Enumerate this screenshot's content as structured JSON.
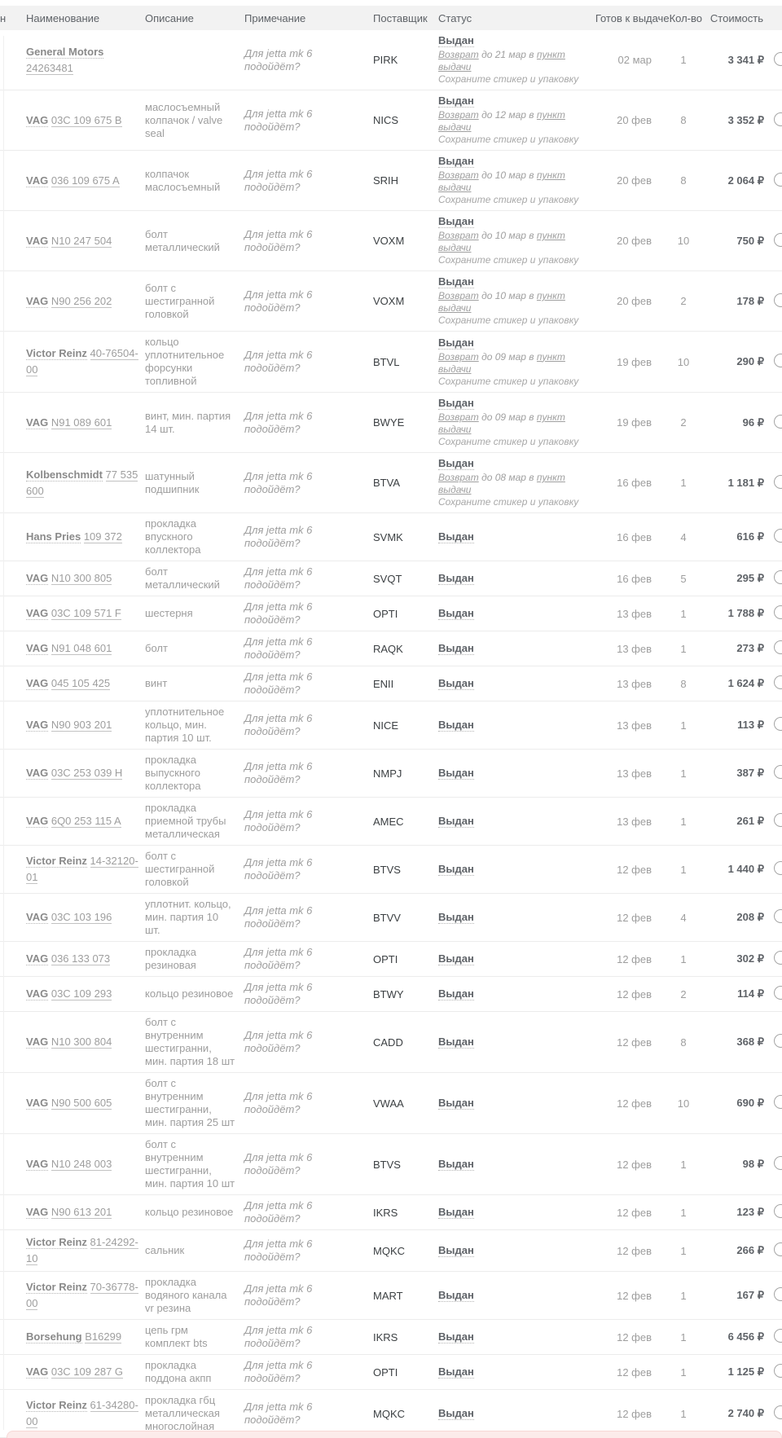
{
  "colors": {
    "header_bg": "#f2f2f2",
    "row_separator": "#ececec",
    "text_dark": "#5f6368",
    "text_gray": "#9e9e9e",
    "pink_bar_bg": "#fcebea"
  },
  "header": {
    "stub": "н",
    "name": "Наименование",
    "description": "Описание",
    "note": "Примечание",
    "supplier": "Поставщик",
    "status": "Статус",
    "ready": "Готов к выдаче",
    "qty": "Кол-во",
    "price": "Стоимость"
  },
  "labels": {
    "issued": "Выдан",
    "return_prefix": "Возврат",
    "return_link": "пункт выдачи",
    "keep_note": "Сохраните стикер и упаковку"
  },
  "icons": {
    "chat_bubble": "chat-bubble-icon"
  },
  "rows": [
    {
      "brand": "General Motors",
      "number": "24263481",
      "description": "",
      "note": "Для jetta mk 6 подойдёт?",
      "supplier": "PIRK",
      "return_mid": "до 21 мар в",
      "ready": "02 мар",
      "qty": "1",
      "price": "3 341 ₽"
    },
    {
      "brand": "VAG",
      "number": "03C 109 675 B",
      "description": "маслосъемный колпачок / valve seal",
      "note": "Для jetta mk 6 подойдёт?",
      "supplier": "NICS",
      "return_mid": "до 12 мар в",
      "ready": "20 фев",
      "qty": "8",
      "price": "3 352 ₽"
    },
    {
      "brand": "VAG",
      "number": "036 109 675 A",
      "description": "колпачок маслосъемный",
      "note": "Для jetta mk 6 подойдёт?",
      "supplier": "SRIH",
      "return_mid": "до 10 мар в",
      "ready": "20 фев",
      "qty": "8",
      "price": "2 064 ₽"
    },
    {
      "brand": "VAG",
      "number": "N10 247 504",
      "description": "болт металлический",
      "note": "Для jetta mk 6 подойдёт?",
      "supplier": "VOXM",
      "return_mid": "до 10 мар в",
      "ready": "20 фев",
      "qty": "10",
      "price": "750 ₽"
    },
    {
      "brand": "VAG",
      "number": "N90 256 202",
      "description": "болт с шестигранной головкой",
      "note": "Для jetta mk 6 подойдёт?",
      "supplier": "VOXM",
      "return_mid": "до 10 мар в",
      "ready": "20 фев",
      "qty": "2",
      "price": "178 ₽"
    },
    {
      "brand": "Victor Reinz",
      "number": "40-76504-00",
      "description": "кольцо уплотнительное форсунки топливной",
      "note": "Для jetta mk 6 подойдёт?",
      "supplier": "BTVL",
      "return_mid": "до 09 мар в",
      "ready": "19 фев",
      "qty": "10",
      "price": "290 ₽"
    },
    {
      "brand": "VAG",
      "number": "N91 089 601",
      "description": "винт, мин. партия 14 шт.",
      "note": "Для jetta mk 6 подойдёт?",
      "supplier": "BWYE",
      "return_mid": "до 09 мар в",
      "ready": "19 фев",
      "qty": "2",
      "price": "96 ₽"
    },
    {
      "brand": "Kolbenschmidt",
      "number": "77 535 600",
      "description": "шатунный подшипник",
      "note": "Для jetta mk 6 подойдёт?",
      "supplier": "BTVA",
      "return_mid": "до 08 мар в",
      "ready": "16 фев",
      "qty": "1",
      "price": "1 181 ₽"
    },
    {
      "brand": "Hans Pries",
      "number": "109 372",
      "description": "прокладка впускного коллектора",
      "note": "Для jetta mk 6 подойдёт?",
      "supplier": "SVMK",
      "ready": "16 фев",
      "qty": "4",
      "price": "616 ₽"
    },
    {
      "brand": "VAG",
      "number": "N10 300 805",
      "description": "болт металлический",
      "note": "Для jetta mk 6 подойдёт?",
      "supplier": "SVQT",
      "ready": "16 фев",
      "qty": "5",
      "price": "295 ₽"
    },
    {
      "brand": "VAG",
      "number": "03C 109 571 F",
      "description": "шестерня",
      "note": "Для jetta mk 6 подойдёт?",
      "supplier": "OPTI",
      "ready": "13 фев",
      "qty": "1",
      "price": "1 788 ₽"
    },
    {
      "brand": "VAG",
      "number": "N91 048 601",
      "description": "болт",
      "note": "Для jetta mk 6 подойдёт?",
      "supplier": "RAQK",
      "ready": "13 фев",
      "qty": "1",
      "price": "273 ₽"
    },
    {
      "brand": "VAG",
      "number": "045 105 425",
      "description": "винт",
      "note": "Для jetta mk 6 подойдёт?",
      "supplier": "ENII",
      "ready": "13 фев",
      "qty": "8",
      "price": "1 624 ₽"
    },
    {
      "brand": "VAG",
      "number": "N90 903 201",
      "description": "уплотнительное кольцо, мин. партия 10 шт.",
      "note": "Для jetta mk 6 подойдёт?",
      "supplier": "NICE",
      "ready": "13 фев",
      "qty": "1",
      "price": "113 ₽"
    },
    {
      "brand": "VAG",
      "number": "03C 253 039 H",
      "description": "прокладка выпускного коллектора",
      "note": "Для jetta mk 6 подойдёт?",
      "supplier": "NMPJ",
      "ready": "13 фев",
      "qty": "1",
      "price": "387 ₽"
    },
    {
      "brand": "VAG",
      "number": "6Q0 253 115 A",
      "description": "прокладка приемной трубы металлическая",
      "note": "Для jetta mk 6 подойдёт?",
      "supplier": "AMEC",
      "ready": "13 фев",
      "qty": "1",
      "price": "261 ₽"
    },
    {
      "brand": "Victor Reinz",
      "number": "14-32120-01",
      "description": "болт с шестигранной головкой",
      "note": "Для jetta mk 6 подойдёт?",
      "supplier": "BTVS",
      "ready": "12 фев",
      "qty": "1",
      "price": "1 440 ₽"
    },
    {
      "brand": "VAG",
      "number": "03C 103 196",
      "description": "уплотнит. кольцо, мин. партия 10 шт.",
      "note": "Для jetta mk 6 подойдёт?",
      "supplier": "BTVV",
      "ready": "12 фев",
      "qty": "4",
      "price": "208 ₽"
    },
    {
      "brand": "VAG",
      "number": "036 133 073",
      "description": "прокладка резиновая",
      "note": "Для jetta mk 6 подойдёт?",
      "supplier": "OPTI",
      "ready": "12 фев",
      "qty": "1",
      "price": "302 ₽"
    },
    {
      "brand": "VAG",
      "number": "03C 109 293",
      "description": "кольцо резиновое",
      "note": "Для jetta mk 6 подойдёт?",
      "supplier": "BTWY",
      "ready": "12 фев",
      "qty": "2",
      "price": "114 ₽"
    },
    {
      "brand": "VAG",
      "number": "N10 300 804",
      "description": "болт с внутренним шестигранни, мин. партия 18 шт",
      "note": "Для jetta mk 6 подойдёт?",
      "supplier": "CADD",
      "ready": "12 фев",
      "qty": "8",
      "price": "368 ₽"
    },
    {
      "brand": "VAG",
      "number": "N90 500 605",
      "description": "болт с внутренним шестигранни, мин. партия 25 шт",
      "note": "Для jetta mk 6 подойдёт?",
      "supplier": "VWAA",
      "ready": "12 фев",
      "qty": "10",
      "price": "690 ₽"
    },
    {
      "brand": "VAG",
      "number": "N10 248 003",
      "description": "болт с внутренним шестигранни, мин. партия 10 шт",
      "note": "Для jetta mk 6 подойдёт?",
      "supplier": "BTVS",
      "ready": "12 фев",
      "qty": "1",
      "price": "98 ₽"
    },
    {
      "brand": "VAG",
      "number": "N90 613 201",
      "description": "кольцо резиновое",
      "note": "Для jetta mk 6 подойдёт?",
      "supplier": "IKRS",
      "ready": "12 фев",
      "qty": "1",
      "price": "123 ₽"
    },
    {
      "brand": "Victor Reinz",
      "number": "81-24292-10",
      "description": "сальник",
      "note": "Для jetta mk 6 подойдёт?",
      "supplier": "MQKC",
      "ready": "12 фев",
      "qty": "1",
      "price": "266 ₽"
    },
    {
      "brand": "Victor Reinz",
      "number": "70-36778-00",
      "description": "прокладка водяного канала vr резина",
      "note": "Для jetta mk 6 подойдёт?",
      "supplier": "MART",
      "ready": "12 фев",
      "qty": "1",
      "price": "167 ₽"
    },
    {
      "brand": "Borsehung",
      "number": "B16299",
      "description": "цепь грм комплект bts",
      "note": "Для jetta mk 6 подойдёт?",
      "supplier": "IKRS",
      "ready": "12 фев",
      "qty": "1",
      "price": "6 456 ₽"
    },
    {
      "brand": "VAG",
      "number": "03C 109 287 G",
      "description": "прокладка поддона акпп",
      "note": "Для jetta mk 6 подойдёт?",
      "supplier": "OPTI",
      "ready": "12 фев",
      "qty": "1",
      "price": "1 125 ₽"
    },
    {
      "brand": "Victor Reinz",
      "number": "61-34280-00",
      "description": "прокладка гбц металлическая многослойная",
      "note": "Для jetta mk 6 подойдёт?",
      "supplier": "MQKC",
      "ready": "12 фев",
      "qty": "1",
      "price": "2 740 ₽"
    }
  ]
}
